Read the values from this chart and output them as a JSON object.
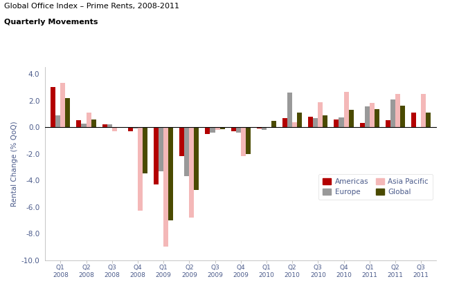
{
  "title_line1": "Global Office Index – Prime Rents, 2008-2011",
  "title_line2": "Quarterly Movements",
  "ylabel": "Rental Change (% QoQ)",
  "ylim": [
    -10.0,
    4.5
  ],
  "yticks": [
    -10.0,
    -8.0,
    -6.0,
    -4.0,
    -2.0,
    0.0,
    2.0,
    4.0
  ],
  "quarters": [
    "Q1\n2008",
    "Q2\n2008",
    "Q3\n2008",
    "Q4\n2008",
    "Q1\n2009",
    "Q2\n2009",
    "Q3\n2009",
    "Q4\n2009",
    "Q1\n2010",
    "Q2\n2010",
    "Q3\n2010",
    "Q4\n2010",
    "Q1\n2011",
    "Q2\n2011",
    "Q3\n2011"
  ],
  "series": {
    "Americas": {
      "color": "#b30000",
      "values": [
        3.0,
        0.5,
        0.2,
        -0.3,
        -4.3,
        -2.2,
        -0.5,
        -0.3,
        -0.1,
        0.7,
        0.8,
        0.6,
        0.3,
        0.5,
        1.1
      ]
    },
    "Europe": {
      "color": "#999999",
      "values": [
        0.9,
        0.25,
        0.2,
        -0.1,
        -3.3,
        -3.7,
        -0.4,
        -0.4,
        -0.2,
        2.6,
        0.7,
        0.75,
        1.55,
        2.1,
        0.0
      ]
    },
    "Asia Pacific": {
      "color": "#f4b8b8",
      "values": [
        3.35,
        1.1,
        -0.3,
        -6.3,
        -9.0,
        -6.8,
        -0.2,
        -2.2,
        0.0,
        0.35,
        1.85,
        2.65,
        1.8,
        2.5,
        2.5
      ]
    },
    "Global": {
      "color": "#4a4a00",
      "values": [
        2.2,
        0.6,
        -0.05,
        -3.5,
        -7.0,
        -4.7,
        -0.15,
        -2.0,
        0.45,
        1.1,
        0.9,
        1.3,
        1.35,
        1.6,
        1.1
      ]
    }
  },
  "legend_labels": [
    "Americas",
    "Europe",
    "Asia Pacific",
    "Global"
  ],
  "legend_colors": [
    "#b30000",
    "#999999",
    "#f4b8b8",
    "#4a4a00"
  ],
  "background_color": "#ffffff",
  "title_color": "#000000",
  "axis_label_color": "#4a5a8a",
  "tick_label_color": "#4a5a8a"
}
